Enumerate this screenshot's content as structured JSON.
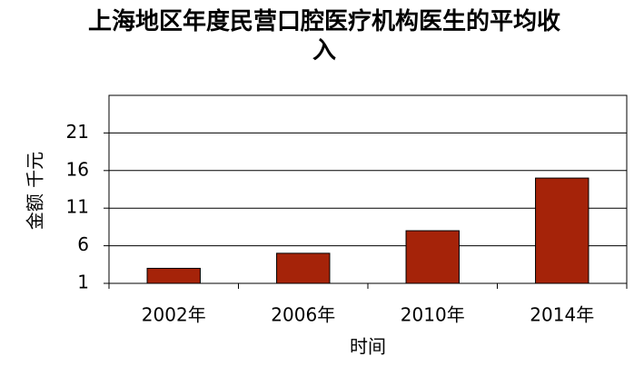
{
  "chart_data": {
    "type": "bar",
    "title": "上海地区年度民营口腔医疗机构医生的平均收入",
    "x_label": "时间",
    "y_label": "金额  千元",
    "categories": [
      "2002年",
      "2006年",
      "2010年",
      "2014年"
    ],
    "values": [
      3,
      5,
      8,
      15
    ],
    "color": "#a52309",
    "ylim": [
      1,
      26
    ],
    "yticks": [
      1,
      6,
      11,
      16,
      21
    ],
    "grid": true
  }
}
